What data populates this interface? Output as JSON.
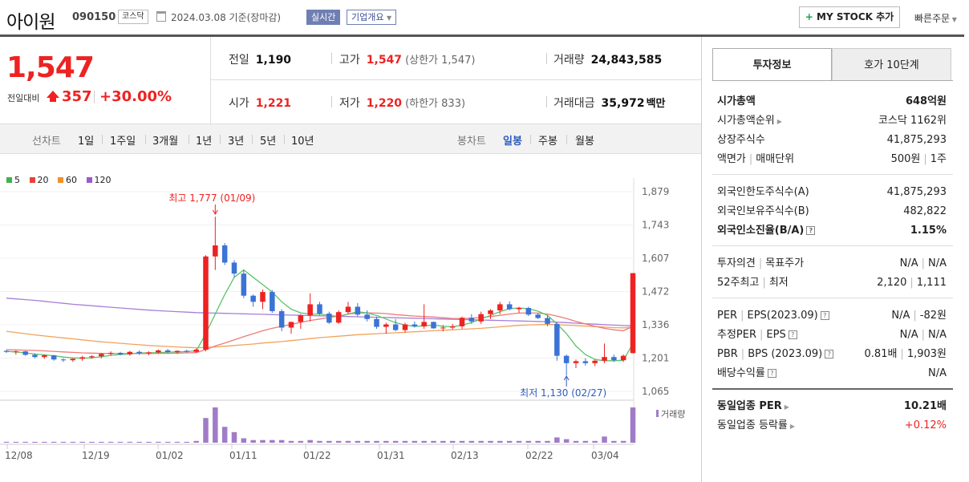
{
  "header": {
    "name": "아이원",
    "code": "090150",
    "market": "코스닥",
    "date": "2024.03.08",
    "basis": "기준(장마감)",
    "realtime": "실시간",
    "company": "기업개요",
    "mystock": "MY STOCK 추가",
    "quick_order": "빠른주문"
  },
  "price": {
    "current": "1,547",
    "diff_label": "전일대비",
    "diff": "357",
    "pct": "+30.00%"
  },
  "quote": {
    "prev_label": "전일",
    "prev": "1,190",
    "high_label": "고가",
    "high": "1,547",
    "upper_limit": "(상한가 1,547)",
    "volume_label": "거래량",
    "volume": "24,843,585",
    "open_label": "시가",
    "open": "1,221",
    "low_label": "저가",
    "low": "1,220",
    "lower_limit": "(하한가 833)",
    "amount_label": "거래대금",
    "amount": "35,972",
    "amount_unit": "백만"
  },
  "tabs": {
    "line_label": "선차트",
    "periods": [
      "1일",
      "1주일",
      "3개월",
      "1년",
      "3년",
      "5년",
      "10년"
    ],
    "candle_label": "봉차트",
    "candles": [
      "일봉",
      "주봉",
      "월봉"
    ],
    "selected_candle": "일봉"
  },
  "chart_data": {
    "type": "candlestick",
    "legend": [
      {
        "name": "5",
        "color": "#3cb44b"
      },
      {
        "name": "20",
        "color": "#e8413c"
      },
      {
        "name": "60",
        "color": "#f28e2b"
      },
      {
        "name": "120",
        "color": "#9b59d0"
      }
    ],
    "y_ticks": [
      "1,879",
      "1,743",
      "1,607",
      "1,472",
      "1,336",
      "1,201",
      "1,065"
    ],
    "ylim": [
      1065,
      1879
    ],
    "x_ticks": [
      "12/08",
      "12/19",
      "01/02",
      "01/11",
      "01/22",
      "01/31",
      "02/13",
      "02/22",
      "03/04"
    ],
    "annot_high": "최고 1,777 (01/09)",
    "annot_low": "최저 1,130 (02/27)",
    "volume_label": "거래량",
    "candles": [
      [
        1230,
        1235,
        1222,
        1226
      ],
      [
        1226,
        1232,
        1215,
        1228
      ],
      [
        1228,
        1230,
        1210,
        1214
      ],
      [
        1214,
        1220,
        1200,
        1205
      ],
      [
        1205,
        1215,
        1198,
        1212
      ],
      [
        1212,
        1214,
        1190,
        1195
      ],
      [
        1195,
        1200,
        1185,
        1192
      ],
      [
        1192,
        1200,
        1185,
        1198
      ],
      [
        1198,
        1210,
        1190,
        1204
      ],
      [
        1204,
        1212,
        1198,
        1208
      ],
      [
        1208,
        1222,
        1200,
        1218
      ],
      [
        1218,
        1228,
        1210,
        1222
      ],
      [
        1222,
        1226,
        1212,
        1216
      ],
      [
        1216,
        1230,
        1210,
        1226
      ],
      [
        1226,
        1232,
        1214,
        1220
      ],
      [
        1220,
        1228,
        1212,
        1224
      ],
      [
        1224,
        1236,
        1218,
        1232
      ],
      [
        1232,
        1238,
        1220,
        1225
      ],
      [
        1225,
        1232,
        1218,
        1230
      ],
      [
        1230,
        1235,
        1222,
        1226
      ],
      [
        1226,
        1240,
        1222,
        1235
      ],
      [
        1235,
        1620,
        1228,
        1615
      ],
      [
        1615,
        1777,
        1560,
        1660
      ],
      [
        1660,
        1670,
        1580,
        1590
      ],
      [
        1590,
        1600,
        1530,
        1545
      ],
      [
        1545,
        1560,
        1445,
        1455
      ],
      [
        1455,
        1460,
        1410,
        1430
      ],
      [
        1430,
        1480,
        1400,
        1470
      ],
      [
        1470,
        1478,
        1385,
        1392
      ],
      [
        1392,
        1400,
        1310,
        1325
      ],
      [
        1325,
        1350,
        1300,
        1348
      ],
      [
        1348,
        1380,
        1320,
        1375
      ],
      [
        1375,
        1465,
        1350,
        1420
      ],
      [
        1420,
        1430,
        1375,
        1382
      ],
      [
        1382,
        1390,
        1340,
        1345
      ],
      [
        1345,
        1395,
        1340,
        1388
      ],
      [
        1388,
        1430,
        1380,
        1410
      ],
      [
        1410,
        1425,
        1370,
        1378
      ],
      [
        1378,
        1395,
        1350,
        1360
      ],
      [
        1360,
        1370,
        1320,
        1328
      ],
      [
        1328,
        1345,
        1300,
        1338
      ],
      [
        1338,
        1360,
        1310,
        1315
      ],
      [
        1315,
        1345,
        1305,
        1338
      ],
      [
        1338,
        1350,
        1325,
        1330
      ],
      [
        1330,
        1420,
        1320,
        1348
      ],
      [
        1348,
        1350,
        1320,
        1322
      ],
      [
        1322,
        1335,
        1310,
        1325
      ],
      [
        1325,
        1340,
        1318,
        1330
      ],
      [
        1330,
        1370,
        1320,
        1365
      ],
      [
        1365,
        1380,
        1340,
        1350
      ],
      [
        1350,
        1390,
        1340,
        1380
      ],
      [
        1380,
        1400,
        1360,
        1395
      ],
      [
        1395,
        1430,
        1380,
        1420
      ],
      [
        1420,
        1432,
        1395,
        1400
      ],
      [
        1400,
        1410,
        1385,
        1405
      ],
      [
        1405,
        1410,
        1372,
        1378
      ],
      [
        1378,
        1385,
        1360,
        1364
      ],
      [
        1364,
        1375,
        1330,
        1340
      ],
      [
        1340,
        1345,
        1190,
        1210
      ],
      [
        1210,
        1215,
        1130,
        1180
      ],
      [
        1180,
        1195,
        1160,
        1188
      ],
      [
        1188,
        1200,
        1170,
        1180
      ],
      [
        1180,
        1195,
        1168,
        1190
      ],
      [
        1190,
        1260,
        1180,
        1205
      ],
      [
        1205,
        1215,
        1185,
        1192
      ],
      [
        1192,
        1215,
        1185,
        1210
      ],
      [
        1221,
        1547,
        1220,
        1547
      ]
    ],
    "ma5": [
      1228,
      1226,
      1222,
      1217,
      1214,
      1210,
      1205,
      1202,
      1200,
      1202,
      1206,
      1212,
      1215,
      1218,
      1222,
      1222,
      1223,
      1225,
      1226,
      1227,
      1230,
      1300,
      1380,
      1460,
      1530,
      1560,
      1530,
      1500,
      1470,
      1430,
      1400,
      1385,
      1380,
      1380,
      1375,
      1370,
      1380,
      1390,
      1385,
      1375,
      1360,
      1345,
      1335,
      1330,
      1332,
      1335,
      1330,
      1328,
      1335,
      1345,
      1360,
      1375,
      1390,
      1402,
      1405,
      1402,
      1392,
      1375,
      1340,
      1300,
      1250,
      1215,
      1195,
      1190,
      1190,
      1192,
      1260
    ],
    "ma20": [
      1235,
      1234,
      1233,
      1232,
      1230,
      1228,
      1226,
      1224,
      1222,
      1221,
      1220,
      1220,
      1219,
      1219,
      1219,
      1219,
      1220,
      1220,
      1221,
      1222,
      1223,
      1235,
      1250,
      1262,
      1275,
      1288,
      1300,
      1312,
      1322,
      1330,
      1338,
      1346,
      1354,
      1360,
      1366,
      1372,
      1380,
      1384,
      1385,
      1384,
      1382,
      1378,
      1375,
      1372,
      1370,
      1368,
      1365,
      1362,
      1362,
      1363,
      1366,
      1370,
      1375,
      1380,
      1384,
      1385,
      1384,
      1380,
      1372,
      1362,
      1350,
      1340,
      1330,
      1322,
      1316,
      1312,
      1330
    ],
    "ma60": [
      1310,
      1305,
      1300,
      1295,
      1291,
      1287,
      1283,
      1279,
      1275,
      1271,
      1267,
      1264,
      1261,
      1258,
      1255,
      1252,
      1250,
      1248,
      1246,
      1244,
      1243,
      1244,
      1246,
      1249,
      1252,
      1255,
      1258,
      1262,
      1265,
      1268,
      1272,
      1276,
      1280,
      1284,
      1287,
      1290,
      1293,
      1296,
      1298,
      1300,
      1302,
      1304,
      1306,
      1308,
      1310,
      1312,
      1314,
      1316,
      1318,
      1320,
      1322,
      1325,
      1328,
      1331,
      1334,
      1336,
      1337,
      1338,
      1337,
      1335,
      1333,
      1331,
      1329,
      1327,
      1325,
      1324,
      1326
    ],
    "ma120": [
      1445,
      1442,
      1439,
      1436,
      1432,
      1428,
      1424,
      1420,
      1417,
      1414,
      1411,
      1408,
      1405,
      1402,
      1399,
      1396,
      1394,
      1392,
      1390,
      1388,
      1386,
      1385,
      1384,
      1383,
      1382,
      1381,
      1380,
      1379,
      1378,
      1377,
      1376,
      1375,
      1374,
      1373,
      1372,
      1371,
      1370,
      1369,
      1368,
      1367,
      1366,
      1365,
      1364,
      1363,
      1362,
      1361,
      1360,
      1359,
      1358,
      1357,
      1356,
      1355,
      1354,
      1353,
      1352,
      1351,
      1350,
      1349,
      1347,
      1345,
      1343,
      1341,
      1339,
      1337,
      1335,
      1333,
      1332
    ],
    "volume": [
      1,
      1,
      1,
      1,
      1,
      1,
      1,
      1,
      1,
      1,
      1,
      1,
      1,
      1,
      1,
      1,
      1,
      1,
      1,
      1,
      2,
      28,
      40,
      18,
      12,
      5,
      3,
      3,
      3,
      3,
      2,
      2,
      3,
      2,
      2,
      2,
      2,
      2,
      2,
      2,
      2,
      2,
      2,
      2,
      2,
      2,
      2,
      2,
      2,
      2,
      2,
      2,
      2,
      2,
      2,
      2,
      2,
      2,
      6,
      4,
      2,
      2,
      2,
      7,
      2,
      2,
      40
    ]
  },
  "panel": {
    "tab1": "투자정보",
    "tab2": "호가 10단계",
    "g1": [
      {
        "l": "시가총액",
        "v": "648억원",
        "bold": true
      },
      {
        "l": "시가총액순위",
        "v": "코스닥 1162위",
        "tri": true
      },
      {
        "l": "상장주식수",
        "v": "41,875,293"
      },
      {
        "l": "액면가",
        "l2": "매매단위",
        "v": "500원",
        "v2": "1주"
      }
    ],
    "g2": [
      {
        "l": "외국인한도주식수(A)",
        "v": "41,875,293"
      },
      {
        "l": "외국인보유주식수(B)",
        "v": "482,822"
      },
      {
        "l": "외국인소진율(B/A)",
        "v": "1.15%",
        "bold": true,
        "q": true
      }
    ],
    "g3": [
      {
        "l": "투자의견",
        "l2": "목표주가",
        "v": "N/A",
        "v2": "N/A"
      },
      {
        "l": "52주최고",
        "l2": "최저",
        "v": "2,120",
        "v2": "1,111"
      }
    ],
    "g4": [
      {
        "l": "PER",
        "l2": "EPS(2023.09)",
        "q": true,
        "v": "N/A",
        "v2": "-82원"
      },
      {
        "l": "추정PER",
        "l2": "EPS",
        "q": true,
        "v": "N/A",
        "v2": "N/A"
      },
      {
        "l": "PBR",
        "l2": "BPS (2023.09)",
        "q": true,
        "v": "0.81배",
        "v2": "1,903원"
      },
      {
        "l": "배당수익률",
        "q": true,
        "v": "N/A"
      }
    ],
    "g5": [
      {
        "l": "동일업종 PER",
        "v": "10.21배",
        "bold": true,
        "tri": true
      },
      {
        "l": "동일업종 등락률",
        "v": "+0.12%",
        "tri": true,
        "red": true
      }
    ]
  },
  "colors": {
    "up": "#e22",
    "down": "#3b73d6",
    "accent": "#2e5bbd"
  }
}
